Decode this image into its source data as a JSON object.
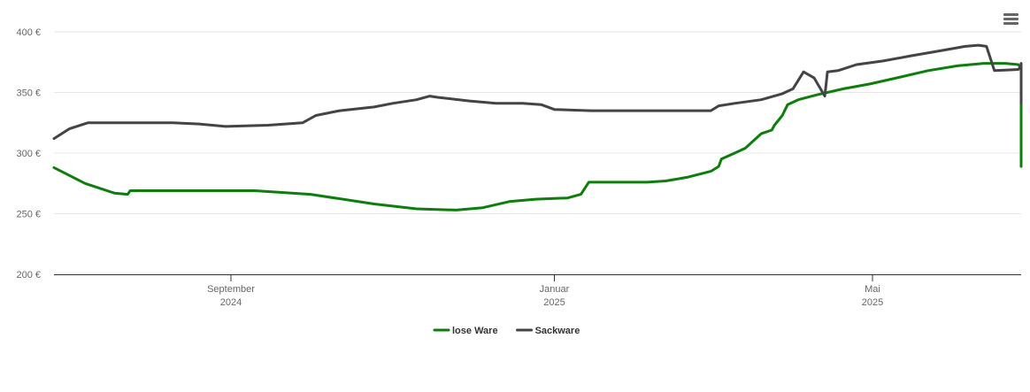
{
  "chart_data": {
    "type": "line",
    "title": "",
    "xlabel": "",
    "ylabel": "",
    "ylim": [
      200,
      400
    ],
    "y_ticks": [
      {
        "value": 200,
        "label": "200 €"
      },
      {
        "value": 250,
        "label": "250 €"
      },
      {
        "value": 300,
        "label": "300 €"
      },
      {
        "value": 350,
        "label": "350 €"
      },
      {
        "value": 400,
        "label": "400 €"
      }
    ],
    "x_ticks": [
      {
        "date": "2024-09-01",
        "month": "September",
        "year": "2024"
      },
      {
        "date": "2025-01-01",
        "month": "Januar",
        "year": "2025"
      },
      {
        "date": "2025-05-01",
        "month": "Mai",
        "year": "2025"
      }
    ],
    "xlim": [
      "2024-06-25",
      "2025-06-25"
    ],
    "grid": "horizontal",
    "legend_position": "bottom-center",
    "series": [
      {
        "name": "lose Ware",
        "color": "#0e7d0e",
        "points": [
          [
            "2024-06-25",
            288
          ],
          [
            "2024-07-08",
            275
          ],
          [
            "2024-07-19",
            267
          ],
          [
            "2024-07-24",
            266
          ],
          [
            "2024-07-25",
            269
          ],
          [
            "2024-08-15",
            269
          ],
          [
            "2024-09-10",
            269
          ],
          [
            "2024-10-01",
            266
          ],
          [
            "2024-10-25",
            258
          ],
          [
            "2024-11-10",
            254
          ],
          [
            "2024-11-25",
            253
          ],
          [
            "2024-12-05",
            255
          ],
          [
            "2024-12-15",
            260
          ],
          [
            "2024-12-25",
            262
          ],
          [
            "2025-01-06",
            263
          ],
          [
            "2025-01-11",
            266
          ],
          [
            "2025-01-14",
            276
          ],
          [
            "2025-01-25",
            276
          ],
          [
            "2025-02-05",
            276
          ],
          [
            "2025-02-12",
            277
          ],
          [
            "2025-02-20",
            280
          ],
          [
            "2025-03-01",
            285
          ],
          [
            "2025-03-04",
            289
          ],
          [
            "2025-03-05",
            295
          ],
          [
            "2025-03-10",
            300
          ],
          [
            "2025-03-14",
            304
          ],
          [
            "2025-03-20",
            316
          ],
          [
            "2025-03-24",
            319
          ],
          [
            "2025-03-25",
            323
          ],
          [
            "2025-03-28",
            331
          ],
          [
            "2025-03-30",
            340
          ],
          [
            "2025-04-03",
            344
          ],
          [
            "2025-04-10",
            348
          ],
          [
            "2025-04-20",
            353
          ],
          [
            "2025-04-30",
            357
          ],
          [
            "2025-05-10",
            362
          ],
          [
            "2025-05-22",
            368
          ],
          [
            "2025-06-02",
            372
          ],
          [
            "2025-06-12",
            374
          ],
          [
            "2025-06-20",
            374
          ],
          [
            "2025-06-25",
            373
          ]
        ]
      },
      {
        "name": "Sackware",
        "color": "#434348",
        "points": [
          [
            "2024-06-25",
            312
          ],
          [
            "2024-07-02",
            320
          ],
          [
            "2024-07-09",
            325
          ],
          [
            "2024-07-20",
            325
          ],
          [
            "2024-08-10",
            325
          ],
          [
            "2024-08-20",
            324
          ],
          [
            "2024-08-30",
            322
          ],
          [
            "2024-09-15",
            323
          ],
          [
            "2024-09-28",
            325
          ],
          [
            "2024-10-03",
            331
          ],
          [
            "2024-10-12",
            335
          ],
          [
            "2024-10-25",
            338
          ],
          [
            "2024-11-01",
            341
          ],
          [
            "2024-11-10",
            344
          ],
          [
            "2024-11-15",
            347
          ],
          [
            "2024-11-18",
            346
          ],
          [
            "2024-11-30",
            343
          ],
          [
            "2024-12-10",
            341
          ],
          [
            "2024-12-20",
            341
          ],
          [
            "2024-12-27",
            340
          ],
          [
            "2025-01-01",
            336
          ],
          [
            "2025-01-15",
            335
          ],
          [
            "2025-02-05",
            335
          ],
          [
            "2025-02-20",
            335
          ],
          [
            "2025-03-01",
            335
          ],
          [
            "2025-03-04",
            339
          ],
          [
            "2025-03-10",
            341
          ],
          [
            "2025-03-20",
            344
          ],
          [
            "2025-03-28",
            349
          ],
          [
            "2025-04-01",
            353
          ],
          [
            "2025-04-05",
            367
          ],
          [
            "2025-04-09",
            362
          ],
          [
            "2025-04-13",
            347
          ],
          [
            "2025-04-14",
            367
          ],
          [
            "2025-04-18",
            368
          ],
          [
            "2025-04-25",
            373
          ],
          [
            "2025-05-05",
            376
          ],
          [
            "2025-05-15",
            380
          ],
          [
            "2025-05-28",
            385
          ],
          [
            "2025-06-05",
            388
          ],
          [
            "2025-06-10",
            389
          ],
          [
            "2025-06-13",
            388
          ],
          [
            "2025-06-16",
            368
          ],
          [
            "2025-06-25",
            369
          ]
        ]
      }
    ]
  },
  "extra_series_tail": {
    "lose Ware": [
      [
        "2025-06-28",
        370
      ],
      [
        "2025-07-05",
        362
      ],
      [
        "2025-07-10",
        354
      ],
      [
        "2025-07-20",
        350
      ],
      [
        "2025-08-01",
        349
      ],
      [
        "2025-08-15",
        343
      ],
      [
        "2025-09-01",
        336
      ],
      [
        "2025-09-20",
        324
      ],
      [
        "2025-10-10",
        313
      ],
      [
        "2025-11-01",
        302
      ],
      [
        "2025-11-20",
        295
      ],
      [
        "2025-12-10",
        289
      ]
    ],
    "Sackware": [
      [
        "2025-07-05",
        372
      ],
      [
        "2025-07-20",
        374
      ],
      [
        "2025-08-05",
        371
      ],
      [
        "2025-08-20",
        364
      ],
      [
        "2025-09-05",
        358
      ],
      [
        "2025-09-20",
        355
      ],
      [
        "2025-10-10",
        351
      ],
      [
        "2025-11-01",
        346
      ],
      [
        "2025-11-20",
        343
      ],
      [
        "2025-12-10",
        341
      ]
    ]
  },
  "menu": {
    "icon": "hamburger-menu-icon"
  }
}
